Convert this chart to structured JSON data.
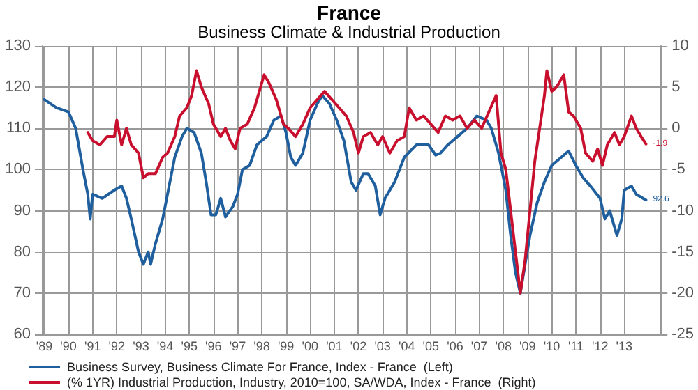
{
  "chart_data": {
    "type": "line",
    "title": "France",
    "subtitle": "Business Climate & Industrial Production",
    "xlim": [
      1988.9,
      2014.5
    ],
    "xticks": [
      {
        "value": 1989,
        "label": "'89"
      },
      {
        "value": 1990,
        "label": "'90"
      },
      {
        "value": 1991,
        "label": "'91"
      },
      {
        "value": 1992,
        "label": "'92"
      },
      {
        "value": 1993,
        "label": "'93"
      },
      {
        "value": 1994,
        "label": "'94"
      },
      {
        "value": 1995,
        "label": "'95"
      },
      {
        "value": 1996,
        "label": "'96"
      },
      {
        "value": 1997,
        "label": "'97"
      },
      {
        "value": 1998,
        "label": "'98"
      },
      {
        "value": 1999,
        "label": "'99"
      },
      {
        "value": 2000,
        "label": "'00"
      },
      {
        "value": 2001,
        "label": "'01"
      },
      {
        "value": 2002,
        "label": "'02"
      },
      {
        "value": 2003,
        "label": "'03"
      },
      {
        "value": 2004,
        "label": "'04"
      },
      {
        "value": 2005,
        "label": "'05"
      },
      {
        "value": 2006,
        "label": "'06"
      },
      {
        "value": 2007,
        "label": "'07"
      },
      {
        "value": 2008,
        "label": "'08"
      },
      {
        "value": 2009,
        "label": "'09"
      },
      {
        "value": 2010,
        "label": "'10"
      },
      {
        "value": 2011,
        "label": "'11"
      },
      {
        "value": 2012,
        "label": "'12"
      },
      {
        "value": 2013,
        "label": "'13"
      }
    ],
    "ylim": [
      60,
      130
    ],
    "yticks": [
      60,
      70,
      80,
      90,
      100,
      110,
      120,
      130
    ],
    "y2lim": [
      -25,
      10
    ],
    "y2ticks": [
      -25,
      -20,
      -15,
      -10,
      -5,
      0,
      5,
      10
    ],
    "grid": true,
    "legend": "bottom",
    "marker": "none",
    "line_style": "solid",
    "series": [
      {
        "name": "Business Survey, Business Climate For France, Index - France  (Left)",
        "color": "#1f5f9e",
        "axis": "y",
        "x": [
          1989.0,
          1989.5,
          1990.0,
          1990.3,
          1990.6,
          1990.8,
          1990.9,
          1991.0,
          1991.4,
          1991.9,
          1992.2,
          1992.4,
          1992.6,
          1992.9,
          1993.1,
          1993.3,
          1993.4,
          1993.6,
          1993.9,
          1994.2,
          1994.4,
          1994.7,
          1994.9,
          1995.2,
          1995.5,
          1995.7,
          1995.9,
          1996.1,
          1996.3,
          1996.5,
          1996.8,
          1997.0,
          1997.2,
          1997.5,
          1997.8,
          1998.2,
          1998.5,
          1998.8,
          1999.0,
          1999.2,
          1999.4,
          1999.7,
          2000.0,
          2000.3,
          2000.5,
          2000.8,
          2001.1,
          2001.4,
          2001.7,
          2001.9,
          2002.2,
          2002.4,
          2002.7,
          2002.9,
          2003.1,
          2003.5,
          2003.9,
          2004.4,
          2004.9,
          2005.2,
          2005.4,
          2005.7,
          2006.1,
          2006.5,
          2006.9,
          2007.3,
          2007.5,
          2007.8,
          2008.1,
          2008.3,
          2008.5,
          2008.7,
          2008.9,
          2009.1,
          2009.4,
          2009.7,
          2010.0,
          2010.4,
          2010.7,
          2011.0,
          2011.3,
          2011.6,
          2012.0,
          2012.2,
          2012.4,
          2012.7,
          2012.9,
          2013.0,
          2013.3,
          2013.5,
          2013.9
        ],
        "values": [
          117,
          115,
          114,
          110,
          100,
          94,
          88,
          94,
          93,
          95,
          96,
          93,
          88,
          80,
          77,
          80,
          77,
          82,
          88,
          97,
          103,
          108,
          110,
          109,
          104,
          97,
          89,
          89,
          93,
          88.5,
          91,
          94,
          100,
          101,
          106,
          108,
          112,
          113,
          109,
          103,
          101,
          104,
          112,
          116,
          118,
          116,
          112,
          107,
          97,
          95,
          99,
          99,
          96,
          89,
          93,
          97,
          103,
          106,
          106,
          103.5,
          104,
          106,
          108,
          110,
          113,
          112,
          110,
          104,
          95,
          84,
          75,
          70,
          77,
          84,
          92,
          97,
          101,
          103,
          104.5,
          101,
          98,
          96,
          93,
          88,
          90,
          84,
          88,
          95,
          96,
          94,
          92.6
        ],
        "value_labels": [
          null,
          null,
          null,
          null,
          null,
          null,
          null,
          null,
          null,
          null,
          null,
          null,
          null,
          null,
          null,
          null,
          null,
          null,
          null,
          null,
          null,
          null,
          null,
          null,
          null,
          null,
          null,
          null,
          null,
          null,
          null,
          null,
          null,
          null,
          null,
          null,
          null,
          null,
          null,
          null,
          null,
          null,
          null,
          null,
          null,
          null,
          null,
          null,
          null,
          null,
          null,
          null,
          null,
          null,
          null,
          null,
          null,
          null,
          null,
          null,
          null,
          null,
          null,
          null,
          null,
          null,
          null,
          null,
          null,
          null,
          null,
          null,
          null,
          null,
          null,
          null,
          null,
          null,
          null,
          null,
          null,
          null,
          null,
          null,
          null,
          null,
          null,
          null,
          null,
          null,
          "92.6"
        ]
      },
      {
        "name": "(% 1YR) Industrial Production, Industry, 2010=100, SA/WDA, Index - France  (Right)",
        "color": "#c8102e",
        "axis": "y2",
        "x": [
          1990.8,
          1991.0,
          1991.3,
          1991.6,
          1991.9,
          1992.0,
          1992.2,
          1992.4,
          1992.6,
          1992.9,
          1993.1,
          1993.3,
          1993.6,
          1993.9,
          1994.1,
          1994.4,
          1994.6,
          1994.9,
          1995.1,
          1995.3,
          1995.5,
          1995.8,
          1996.0,
          1996.3,
          1996.5,
          1996.7,
          1996.9,
          1997.1,
          1997.4,
          1997.7,
          1997.9,
          1998.1,
          1998.3,
          1998.6,
          1998.9,
          1999.1,
          1999.4,
          1999.7,
          2000.0,
          2000.3,
          2000.6,
          2000.9,
          2001.2,
          2001.5,
          2001.8,
          2002.0,
          2002.2,
          2002.5,
          2002.8,
          2003.0,
          2003.3,
          2003.6,
          2003.9,
          2004.1,
          2004.4,
          2004.7,
          2005.0,
          2005.3,
          2005.6,
          2005.9,
          2006.2,
          2006.5,
          2006.8,
          2007.1,
          2007.4,
          2007.7,
          2007.9,
          2008.1,
          2008.3,
          2008.5,
          2008.7,
          2008.9,
          2009.1,
          2009.3,
          2009.5,
          2009.7,
          2009.8,
          2010.0,
          2010.2,
          2010.5,
          2010.7,
          2010.9,
          2011.2,
          2011.4,
          2011.7,
          2011.9,
          2012.1,
          2012.3,
          2012.6,
          2012.8,
          2013.0,
          2013.3,
          2013.5,
          2013.7,
          2013.9
        ],
        "values": [
          -0.5,
          -1.5,
          -2,
          -1,
          -1,
          1,
          -2,
          0,
          -2,
          -3,
          -6,
          -5.5,
          -5.5,
          -3.5,
          -3,
          -1,
          1.5,
          2.5,
          4,
          7,
          5,
          3,
          0.5,
          -1,
          0,
          -1.5,
          -2.5,
          0,
          0.5,
          2.5,
          4.5,
          6.5,
          5.5,
          3.5,
          0.5,
          0,
          -1,
          0.5,
          2.5,
          3.5,
          4.5,
          3.5,
          2.5,
          1.5,
          -0.5,
          -3,
          -1,
          -0.5,
          -2,
          -1,
          -3,
          -1.5,
          -1,
          2.5,
          1,
          1.5,
          0.5,
          -0.5,
          1.5,
          1,
          1.5,
          0,
          1,
          0,
          2,
          4,
          -3,
          -5,
          -10,
          -15,
          -20,
          -16,
          -10,
          -4,
          0,
          4,
          7,
          4.5,
          5,
          6.5,
          2,
          1.5,
          0,
          -3,
          -4,
          -2.5,
          -4.5,
          -2,
          -0.5,
          -2,
          -1,
          1.5,
          0,
          -1,
          -1.9
        ],
        "value_labels": [
          null,
          null,
          null,
          null,
          null,
          null,
          null,
          null,
          null,
          null,
          null,
          null,
          null,
          null,
          null,
          null,
          null,
          null,
          null,
          null,
          null,
          null,
          null,
          null,
          null,
          null,
          null,
          null,
          null,
          null,
          null,
          null,
          null,
          null,
          null,
          null,
          null,
          null,
          null,
          null,
          null,
          null,
          null,
          null,
          null,
          null,
          null,
          null,
          null,
          null,
          null,
          null,
          null,
          null,
          null,
          null,
          null,
          null,
          null,
          null,
          null,
          null,
          null,
          null,
          null,
          null,
          null,
          null,
          null,
          null,
          null,
          null,
          null,
          null,
          null,
          null,
          null,
          null,
          null,
          null,
          null,
          null,
          null,
          null,
          null,
          null,
          null,
          null,
          null,
          null,
          null,
          null,
          null,
          null,
          "-1.9"
        ]
      }
    ]
  }
}
